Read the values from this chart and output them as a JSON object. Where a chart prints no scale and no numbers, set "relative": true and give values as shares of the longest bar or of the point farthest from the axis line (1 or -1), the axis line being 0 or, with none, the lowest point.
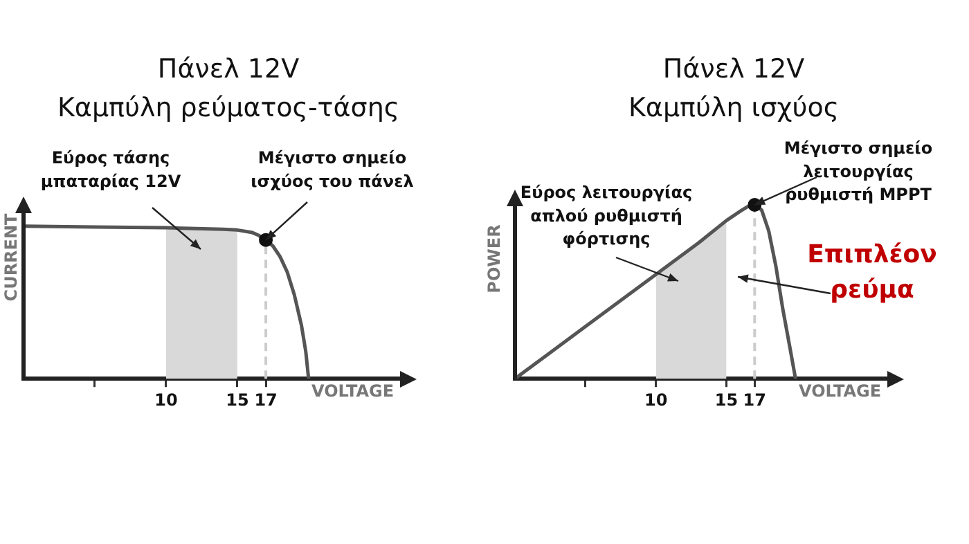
{
  "chart_data": [
    {
      "type": "line",
      "title": "Πάνελ 12V",
      "subtitle": "Καμπύλη ρεύματος-τάσης",
      "xlabel": "VOLTAGE",
      "ylabel": "CURRENT",
      "relative": true,
      "xlim": [
        0,
        27
      ],
      "xticks": [
        {
          "value": 5,
          "label": null
        },
        10,
        15,
        17
      ],
      "series": [
        {
          "type": "line",
          "marker": "none",
          "color": "#555555",
          "x": [
            0,
            5,
            10,
            14,
            15,
            16,
            16.5,
            17,
            17.5,
            18,
            18.5,
            19,
            19.5,
            19.8,
            20
          ],
          "values": [
            1.0,
            0.995,
            0.99,
            0.98,
            0.975,
            0.96,
            0.94,
            0.91,
            0.87,
            0.8,
            0.7,
            0.55,
            0.35,
            0.18,
            0
          ]
        },
        {
          "type": "scatter",
          "marker": "circle",
          "color": "#111111",
          "x": [
            17
          ],
          "values": [
            0.91
          ]
        },
        {
          "type": "area",
          "color": "#d9d9d9",
          "x": [
            10,
            14,
            15
          ],
          "values": [
            0.99,
            0.98,
            0.975
          ]
        }
      ],
      "ref_lines": [
        {
          "axis": "x",
          "value": 17,
          "color": "#cccccc",
          "line_style": "dashed"
        }
      ],
      "annotations": [
        "Εύρος τάσης\nμπαταρίας 12V",
        {
          "text": "Μέγιστο σημείο\nισχύος του πάνελ",
          "x": 17,
          "y": 0.91
        }
      ]
    },
    {
      "type": "line",
      "title": "Πάνελ 12V",
      "subtitle": "Καμπύλη ισχύος",
      "xlabel": "VOLTAGE",
      "ylabel": "POWER",
      "relative": true,
      "xlim": [
        0,
        27
      ],
      "xticks": [
        {
          "value": 5,
          "label": null
        },
        10,
        15,
        17
      ],
      "series": [
        {
          "type": "line",
          "marker": "none",
          "color": "#555555",
          "x": [
            0,
            5,
            10,
            13,
            15,
            16,
            16.5,
            17,
            17.5,
            18,
            18.5,
            19,
            19.5,
            19.9
          ],
          "values": [
            0,
            0.3,
            0.6,
            0.78,
            0.91,
            0.965,
            0.99,
            1.0,
            0.97,
            0.85,
            0.65,
            0.4,
            0.18,
            0
          ]
        },
        {
          "type": "scatter",
          "marker": "circle",
          "color": "#111111",
          "x": [
            17
          ],
          "values": [
            1.0
          ]
        },
        {
          "type": "area",
          "color": "#d9d9d9",
          "x": [
            10,
            13,
            15
          ],
          "values": [
            0.6,
            0.78,
            0.91
          ]
        }
      ],
      "ref_lines": [
        {
          "axis": "x",
          "value": 17,
          "color": "#cccccc",
          "line_style": "dashed"
        }
      ],
      "annotations": [
        "Εύρος λειτουργίας\nαπλού ρυθμιστή\nφόρτισης",
        {
          "text": "Μέγιστο σημείο\nλειτουργίας\nρυθμιστή MPPT",
          "x": 17,
          "y": 1.0
        },
        "Επιπλέον\nρεύμα"
      ]
    }
  ]
}
